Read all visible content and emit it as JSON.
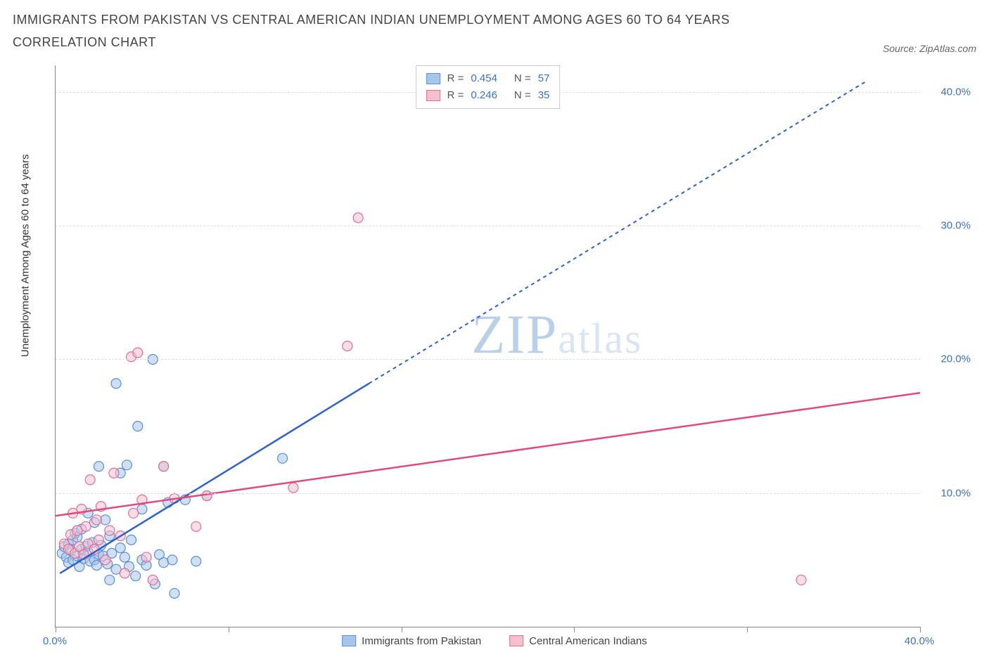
{
  "title": "IMMIGRANTS FROM PAKISTAN VS CENTRAL AMERICAN INDIAN UNEMPLOYMENT AMONG AGES 60 TO 64 YEARS CORRELATION CHART",
  "source_prefix": "Source: ",
  "source_name": "ZipAtlas.com",
  "watermark": "ZIPatlas",
  "chart": {
    "type": "scatter",
    "ylabel": "Unemployment Among Ages 60 to 64 years",
    "xlim": [
      0,
      40
    ],
    "ylim": [
      0,
      42
    ],
    "ytick_values": [
      10,
      20,
      30,
      40
    ],
    "ytick_labels": [
      "10.0%",
      "20.0%",
      "30.0%",
      "40.0%"
    ],
    "xtick_values": [
      0,
      8,
      16,
      24,
      32,
      40
    ],
    "xtick_labels_shown": {
      "0": "0.0%",
      "40": "40.0%"
    },
    "grid_color": "#dddddd",
    "background_color": "#ffffff",
    "axis_color": "#888888",
    "tick_label_color": "#3b71c6",
    "series": [
      {
        "name": "Immigrants from Pakistan",
        "key": "pakistan",
        "marker_fill": "#a8c5eb",
        "marker_stroke": "#5b8fd6",
        "marker_fill_opacity": 0.55,
        "marker_radius": 7,
        "line_color": "#2f62c9",
        "line_dash_extend": "5,5",
        "R": "0.454",
        "N": "57",
        "trend": {
          "x1": 0.2,
          "y1": 4.0,
          "x2": 14.5,
          "y2": 18.2,
          "ext_x2": 37.5,
          "ext_y2": 40.8
        },
        "points": [
          [
            0.3,
            5.5
          ],
          [
            0.4,
            6.0
          ],
          [
            0.5,
            5.2
          ],
          [
            0.6,
            6.2
          ],
          [
            0.6,
            4.8
          ],
          [
            0.7,
            5.7
          ],
          [
            0.8,
            6.5
          ],
          [
            0.8,
            5.0
          ],
          [
            0.9,
            7.0
          ],
          [
            1.0,
            5.3
          ],
          [
            1.0,
            6.7
          ],
          [
            1.1,
            4.5
          ],
          [
            1.2,
            5.8
          ],
          [
            1.2,
            7.3
          ],
          [
            1.3,
            5.1
          ],
          [
            1.4,
            6.0
          ],
          [
            1.5,
            8.5
          ],
          [
            1.5,
            5.6
          ],
          [
            1.6,
            4.9
          ],
          [
            1.7,
            6.3
          ],
          [
            1.8,
            5.0
          ],
          [
            1.8,
            7.8
          ],
          [
            1.9,
            4.6
          ],
          [
            2.0,
            5.4
          ],
          [
            2.0,
            12.0
          ],
          [
            2.1,
            6.1
          ],
          [
            2.2,
            5.3
          ],
          [
            2.3,
            8.0
          ],
          [
            2.4,
            4.7
          ],
          [
            2.5,
            6.8
          ],
          [
            2.6,
            5.5
          ],
          [
            2.8,
            4.3
          ],
          [
            2.8,
            18.2
          ],
          [
            3.0,
            5.9
          ],
          [
            3.0,
            11.5
          ],
          [
            3.2,
            5.2
          ],
          [
            3.3,
            12.1
          ],
          [
            3.4,
            4.5
          ],
          [
            3.5,
            6.5
          ],
          [
            3.7,
            3.8
          ],
          [
            3.8,
            15.0
          ],
          [
            4.0,
            5.0
          ],
          [
            4.0,
            8.8
          ],
          [
            4.2,
            4.6
          ],
          [
            4.5,
            20.0
          ],
          [
            4.6,
            3.2
          ],
          [
            4.8,
            5.4
          ],
          [
            5.0,
            12.0
          ],
          [
            5.0,
            4.8
          ],
          [
            5.2,
            9.3
          ],
          [
            5.4,
            5.0
          ],
          [
            5.5,
            2.5
          ],
          [
            6.0,
            9.5
          ],
          [
            6.5,
            4.9
          ],
          [
            7.0,
            9.8
          ],
          [
            10.5,
            12.6
          ],
          [
            2.5,
            3.5
          ]
        ]
      },
      {
        "name": "Central American Indians",
        "key": "cai",
        "marker_fill": "#f4c1cd",
        "marker_stroke": "#e16f93",
        "marker_fill_opacity": 0.55,
        "marker_radius": 7,
        "line_color": "#e14b7a",
        "R": "0.246",
        "N": "35",
        "trend": {
          "x1": 0,
          "y1": 8.3,
          "x2": 40,
          "y2": 17.5
        },
        "points": [
          [
            0.4,
            6.2
          ],
          [
            0.6,
            5.8
          ],
          [
            0.7,
            6.9
          ],
          [
            0.8,
            8.5
          ],
          [
            0.9,
            5.5
          ],
          [
            1.0,
            7.2
          ],
          [
            1.1,
            6.0
          ],
          [
            1.2,
            8.8
          ],
          [
            1.3,
            5.4
          ],
          [
            1.4,
            7.5
          ],
          [
            1.5,
            6.2
          ],
          [
            1.6,
            11.0
          ],
          [
            1.8,
            5.8
          ],
          [
            1.9,
            8.0
          ],
          [
            2.0,
            6.5
          ],
          [
            2.1,
            9.0
          ],
          [
            2.3,
            5.0
          ],
          [
            2.5,
            7.2
          ],
          [
            2.7,
            11.5
          ],
          [
            3.0,
            6.8
          ],
          [
            3.2,
            4.0
          ],
          [
            3.5,
            20.2
          ],
          [
            3.6,
            8.5
          ],
          [
            3.8,
            20.5
          ],
          [
            4.0,
            9.5
          ],
          [
            4.2,
            5.2
          ],
          [
            4.5,
            3.5
          ],
          [
            5.0,
            12.0
          ],
          [
            5.5,
            9.6
          ],
          [
            6.5,
            7.5
          ],
          [
            7.0,
            9.8
          ],
          [
            11.0,
            10.4
          ],
          [
            13.5,
            21.0
          ],
          [
            14.0,
            30.6
          ],
          [
            34.5,
            3.5
          ]
        ]
      }
    ],
    "legend_bottom": [
      {
        "label": "Immigrants from Pakistan",
        "fill": "#a8c5eb",
        "stroke": "#5b8fd6"
      },
      {
        "label": "Central American Indians",
        "fill": "#f4c1cd",
        "stroke": "#e16f93"
      }
    ]
  }
}
